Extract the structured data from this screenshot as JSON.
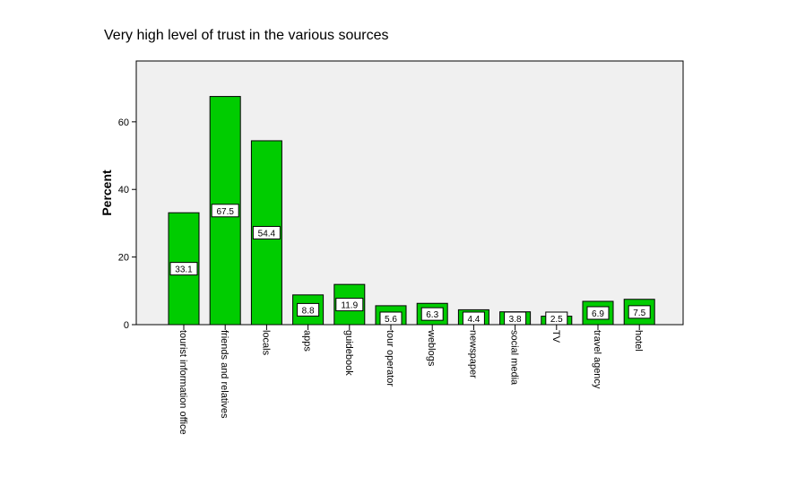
{
  "chart_data": {
    "type": "bar",
    "title": "Very high level of trust in the various sources",
    "ylabel": "Percent",
    "xlabel": "",
    "ylim": [
      0,
      78
    ],
    "yticks": [
      0,
      20,
      40,
      60
    ],
    "grid": false,
    "categories": [
      "tourist information office",
      "friends and relatives",
      "locals",
      "apps",
      "guidebook",
      "tour operator",
      "weblogs",
      "newspaper",
      "social media",
      "TV",
      "travel agency",
      "hotel"
    ],
    "values": [
      33.1,
      67.5,
      54.4,
      8.8,
      11.9,
      5.6,
      6.3,
      4.4,
      3.8,
      2.5,
      6.9,
      7.5
    ],
    "value_labels": [
      "33.1",
      "67.5",
      "54.4",
      "8.8",
      "11.9",
      "5.6",
      "6.3",
      "4.4",
      "3.8",
      "2.5",
      "6.9",
      "7.5"
    ],
    "colors": {
      "bar": "#00cc00",
      "bar_stroke": "#000000",
      "plot_bg": "#f0f0f0"
    }
  }
}
